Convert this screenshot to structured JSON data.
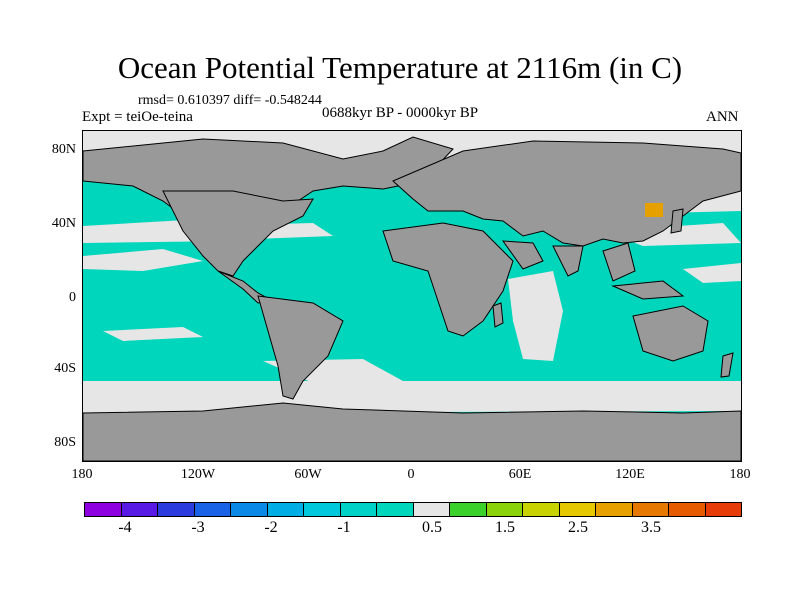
{
  "title": "Ocean Potential Temperature at 2116m (in C)",
  "stats": "rmsd= 0.610397 diff= -0.548244",
  "experiment": "Expt = teiOe-teina",
  "period": "0688kyr BP - 0000kyr BP",
  "season": "ANN",
  "lat_labels": [
    "80N",
    "40N",
    "0",
    "40S",
    "80S"
  ],
  "lon_labels": [
    "180",
    "120W",
    "60W",
    "0",
    "60E",
    "120E",
    "180"
  ],
  "colorbar": {
    "colors": [
      "#8f00e0",
      "#5a1ae6",
      "#2a3cdd",
      "#1a62e6",
      "#0a8ae6",
      "#00aee6",
      "#00c8dc",
      "#00d2c8",
      "#00d6bb",
      "#e6e6e6",
      "#3ad22a",
      "#8ad20a",
      "#c8d200",
      "#e6c800",
      "#e6a000",
      "#e67800",
      "#e65a00",
      "#e63c0a"
    ],
    "labels": [
      "-4",
      "-3",
      "-2",
      "-1",
      "0.5",
      "1.5",
      "2.5",
      "3.5"
    ]
  },
  "colors": {
    "land": "#999999",
    "ocean_main": "#00d6bb",
    "ocean_neutral": "#e6e6e6",
    "warm_anomaly": "#e6a000"
  }
}
